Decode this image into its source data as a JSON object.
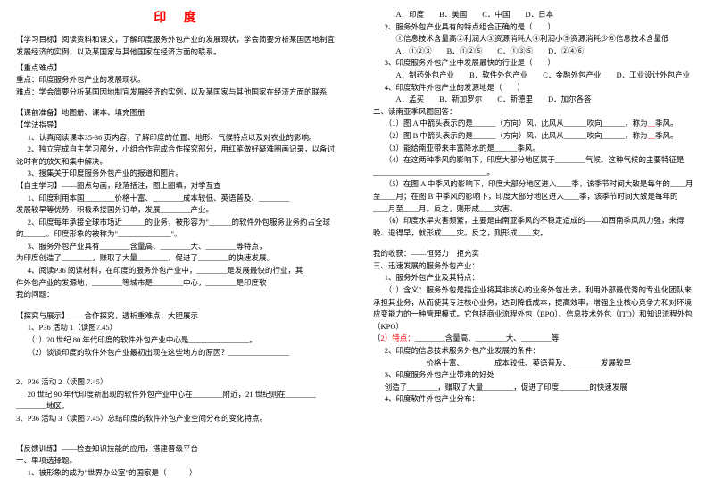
{
  "title": "印 度",
  "left": {
    "goal_label": "【学习目标】",
    "goal_text": "阅读资料和课文，了解印度服务外包产业的发展现状，学会简要分析某国因地制宜发展经济的实例，以及某国家与其他国家在经济方面的联系。",
    "keypoint_label": "【重点难点】",
    "keypoint1": "重点：印度服务外包产业的发展现状。",
    "keypoint2": "难点：学会简要分析某国因地制宜发展经济的实例，以及某国家与其他国家在经济方面的联系",
    "prep_label": "【课前准备】地图册、课本、填充图册",
    "method_label": "【学法指导】",
    "method1": "1、认真阅读课本35-36 页内容，了解印度的位置、地形、气候特点以及对农业的影响。",
    "method2": "2、独立完成自主学习部分，小组合作完成合作探究部分，用红笔做好疑难圈画记录，以备讨论时有的放矢和集中解决。",
    "method3": "3、搜集关于印度服务外包产业的报道和图片。",
    "self_label": "【自主学习】——圈点勾画，段落括注，图上圈填，对学互查",
    "self1a": "1、印度利用本国",
    "self1b": "价格十富、",
    "self1c": "成本较低、英语普及、",
    "self2a": "发展较早等优势，积极承接国外订单，发展",
    "self2b": "产业。",
    "self3a": "2、印度每年承接全球市场近",
    "self3b": "的业务，被形容为\"",
    "self3b2": "的软件外包服务业务约占全球",
    "self3c": "的",
    "self3d": "。印度形象的被称为\"",
    "self3e": "\"。",
    "self4a": "3、服务外包产业具有",
    "self4a2": "含量高、",
    "self4b": "大、",
    "self4c": "等特点，",
    "self5a": "为印度创造了",
    "self5b": "，赚取了大量",
    "self5c": "，促进了",
    "self5d": "的快速发展。",
    "self6a": "4、阅读P36 阅读材料，在印度的服务外包产业中，",
    "self6b": "是发展最快的行业，其",
    "self7a": "件外包产业的发源地，",
    "self7b": "等城市是",
    "self7c": "中心，",
    "self7d": "是印度软",
    "self8": "我的问题：",
    "explore_label": "【探究与展示】——合作探究，透析重难点，大胆展示",
    "act1_label": "1、P36 活动 1（读图7.45）",
    "act1_q1": "（1）20 世纪 80 年代印度的软件外包产业中心是",
    "act1_q2": "（2）谈谈印度的软件外包产业最初出现在这些地方的原因？",
    "act2_label": "2、P36 活动 2（读图 7.45）",
    "act2_q1a": "20 世纪 90 年代印度新出现的软件外包产业中心在",
    "act2_q1b": "附近，21 世纪则在",
    "act2_q2": "地区。",
    "act3_label": "3、P36 活动 3（读图 7.45）总结印度的软件外包产业空间分布的变化特点。",
    "feedback_label": "【反馈训练】——检查知识技能的应用，搭建晋级平台",
    "feedback_sub": "一、单项选择题。",
    "q1": "1、被形象的成为\"世界办公室\"的国家是（　　　）"
  },
  "right": {
    "q1_opts": "A．印度　　B．美国　　C．中国　　D．日本",
    "q2": "2、服务外包产业具有的特点组合正确的是（　　）",
    "q2_sub": "①信息技术含量高②利润大③资源消耗大④利润小⑤资源消耗少⑥信息技术含量低",
    "q2_opts": "A．①②③　　B．①②⑤　　C．①③⑤　　D．②④⑥",
    "q3": "3、印度服务外包产业中发展最快的行业是（　　）",
    "q3_opts": "A．制药外包产业　　B．软件外包产业　　C．金融外包产业　　D．工业设计外包产业",
    "q4": "4、印度软件外包产业的发源地是（　　）",
    "q4_opts": "A．孟买　　B．新加罗尔　　C．新德里　　D．加尔各答",
    "sec2": "二、读南亚季风图回答：",
    "sec2_1a": "（1）图 A 中箭头表示的是",
    "sec2_1b": "（方向）风，此风从",
    "sec2_1c": "吹向",
    "sec2_1d": "，称为",
    "sec2_1e": "季风。",
    "sec2_2a": "（2）图 B 中箭头表示的是",
    "sec2_2b": "（方向）风，此风从",
    "sec2_2c": "吹向",
    "sec2_2d": "，称为",
    "sec2_2e": "季风。",
    "sec2_3a": "（3）能给南亚带来丰富降水的是",
    "sec2_3b": "季风。",
    "sec2_4a": "（4）在这两种季风的影响下，印度大部分地区属于",
    "sec2_4b": "气候。这种气候的主要特征是",
    "sec2_5a": "（5）在图 A 中季风的影响下，印度大部分地区进入",
    "sec2_5b": "季，该季节时间大致是每年的",
    "sec2_5c": "月",
    "sec2_6a": "至",
    "sec2_6b": "月；在图 B 中季风的影响下，印度大部分地区进入",
    "sec2_6c": "季，该季节时间大致是每年的",
    "sec2_7a": "月至",
    "sec2_7b": "月。反之，则形成",
    "sec2_7c": "灾害。",
    "sec2_8a": "（6）印度水旱灾害频繁，主要是由南亚季风的不稳定造成的——如西南季风风力强，来得晚、退得早，就形成",
    "sec2_8b": "灾。反之，则形成",
    "sec2_8c": "灾。",
    "harvest": "我的收获：——恒努力　拒充实",
    "sec3": "三、迅速发展的服务外包产业：",
    "sec3_1": "1、服务外包产业及其特点：",
    "sec3_1a": "（1）含义：服务外包是指企业将其非核心的业务外包出去，利用外部最优秀的专业化团队来承担其业务，从而使其专注核心业务，达到降低成本，提高效率，增强企业核心竞争力和对环境应变能力的一种管理模式。它包括商业流程外包（BPO）、信息技术外包（ITO）和知识流程外包（KPO）",
    "sec3_2a_cap": "（",
    "sec3_2a": "2）特点：",
    "sec3_2b": "含量高、",
    "sec3_2c": "大、",
    "sec3_2d0": "等",
    "sec3_3": "2、印度的信息技术服务外包产业发展的条件：",
    "sec3_3a": "价格十富、",
    "sec3_3b": "成本较低、英语普及、",
    "sec3_3c": "发展较早",
    "sec3_4": "3、印度服务外包产业带来的好处",
    "sec3_4a": "创造了",
    "sec3_4b": "，赚取了大量",
    "sec3_4c": "，促进了印度",
    "sec3_4d": "的快速发展",
    "sec3_5": "4、印度软件外包产业分布："
  }
}
